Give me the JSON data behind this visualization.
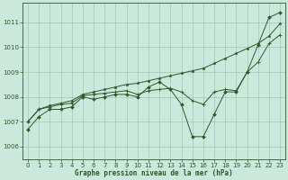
{
  "title": "Graphe pression niveau de la mer (hPa)",
  "background_color": "#cce8dc",
  "grid_color": "#a0c8b8",
  "line_color": "#2d5a27",
  "x_ticks": [
    0,
    1,
    2,
    3,
    4,
    5,
    6,
    7,
    8,
    9,
    10,
    11,
    12,
    13,
    14,
    15,
    16,
    17,
    18,
    19,
    20,
    21,
    22,
    23
  ],
  "yticks": [
    1006,
    1007,
    1008,
    1009,
    1010,
    1011
  ],
  "ylim_low": 1005.5,
  "ylim_high": 1011.8,
  "series1": [
    1006.7,
    1007.2,
    1007.5,
    1007.5,
    1007.6,
    1008.0,
    1007.9,
    1008.0,
    1008.1,
    1008.1,
    1008.0,
    1008.4,
    1008.6,
    1008.3,
    1007.7,
    1006.4,
    1006.4,
    1007.3,
    1008.2,
    1008.2,
    1009.0,
    1010.1,
    1011.2,
    1011.4
  ],
  "series2": [
    1007.0,
    1007.5,
    1007.6,
    1007.7,
    1007.75,
    1008.05,
    1008.1,
    1008.15,
    1008.2,
    1008.25,
    1008.1,
    1008.25,
    1008.3,
    1008.35,
    1008.2,
    1007.85,
    1007.7,
    1008.2,
    1008.3,
    1008.25,
    1009.0,
    1009.4,
    1010.15,
    1010.5
  ],
  "series3": [
    1007.0,
    1007.5,
    1007.65,
    1007.75,
    1007.85,
    1008.1,
    1008.2,
    1008.3,
    1008.4,
    1008.5,
    1008.55,
    1008.65,
    1008.75,
    1008.85,
    1008.95,
    1009.05,
    1009.15,
    1009.35,
    1009.55,
    1009.75,
    1009.95,
    1010.15,
    1010.45,
    1010.95
  ],
  "title_fontsize": 5.5,
  "tick_fontsize": 5.0
}
